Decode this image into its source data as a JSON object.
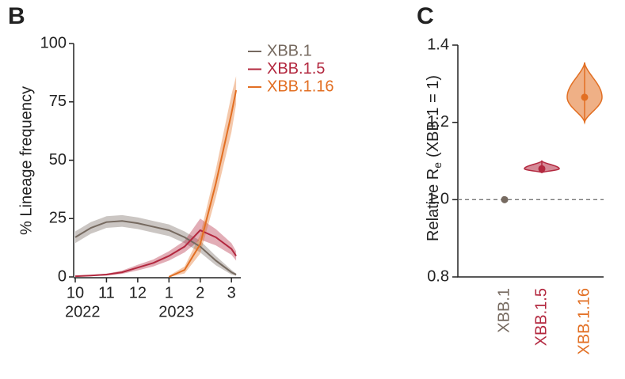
{
  "chart_data": [
    {
      "type": "line",
      "panel_label": "B",
      "y_label": "% Lineage frequency",
      "x": [
        0,
        0.5,
        1,
        1.5,
        2,
        2.5,
        3,
        3.5,
        4,
        4.5,
        5,
        5.15
      ],
      "xlim": [
        0,
        5.3
      ],
      "xticks": [
        {
          "value": 0,
          "label": "10"
        },
        {
          "value": 1,
          "label": "11"
        },
        {
          "value": 2,
          "label": "12"
        },
        {
          "value": 3,
          "label": "1"
        },
        {
          "value": 4,
          "label": "2"
        },
        {
          "value": 5,
          "label": "3"
        }
      ],
      "year_labels": [
        {
          "value": 0,
          "label": "2022"
        },
        {
          "value": 3,
          "label": "2023"
        }
      ],
      "ylim": [
        0,
        100
      ],
      "yticks": [
        0,
        25,
        50,
        75,
        100
      ],
      "series": [
        {
          "name": "XBB.1",
          "color": "#766a60",
          "values": [
            17,
            21,
            23.5,
            24,
            23,
            21.5,
            20,
            17,
            13,
            7,
            2,
            1
          ],
          "lower": [
            14.5,
            18.5,
            21,
            21.5,
            20.5,
            19,
            17.5,
            14.5,
            10.5,
            5,
            1,
            0.5
          ],
          "upper": [
            19.5,
            23.5,
            26,
            26.5,
            25.5,
            24,
            22.5,
            19.5,
            15.5,
            9,
            3,
            1.5
          ]
        },
        {
          "name": "XBB.1.5",
          "color": "#b3283f",
          "values": [
            0.3,
            0.6,
            1,
            2,
            4,
            6,
            9,
            13,
            20,
            17,
            12,
            9
          ],
          "lower": [
            0.1,
            0.3,
            0.6,
            1.3,
            2.8,
            4.5,
            7,
            10.5,
            16,
            13.5,
            9.5,
            7
          ],
          "upper": [
            0.5,
            0.9,
            1.4,
            2.7,
            5.2,
            7.5,
            11,
            15.5,
            25,
            20.5,
            14.5,
            11
          ]
        },
        {
          "name": "XBB.1.16",
          "color": "#e26f23",
          "values": [
            null,
            null,
            null,
            null,
            null,
            null,
            0,
            3,
            14,
            40,
            70,
            80
          ],
          "lower": [
            null,
            null,
            null,
            null,
            null,
            null,
            0,
            1.5,
            10,
            34,
            62,
            74
          ],
          "upper": [
            null,
            null,
            null,
            null,
            null,
            null,
            0.5,
            4.5,
            18,
            46,
            78,
            86
          ]
        }
      ]
    },
    {
      "type": "violin",
      "panel_label": "C",
      "y_label": "Relative R",
      "y_label_subscript": "e",
      "y_label_suffix": "(XBB.1 = 1)",
      "categories": [
        "XBB.1",
        "XBB.1.5",
        "XBB.1.16"
      ],
      "colors": [
        "#766a60",
        "#b3283f",
        "#e26f23"
      ],
      "values": [
        1,
        1.08,
        1.265
      ],
      "intervals": [
        null,
        [
          1.07,
          1.1
        ],
        [
          1.2,
          1.355
        ]
      ],
      "ylim": [
        0.8,
        1.4
      ],
      "yticks": [
        {
          "value": 0.8,
          "label": "0.8"
        },
        {
          "value": 1.0,
          "label": "1.0"
        },
        {
          "value": 1.2,
          "label": "1.2"
        },
        {
          "value": 1.4,
          "label": "1.4"
        }
      ],
      "reference_line": 1
    }
  ]
}
